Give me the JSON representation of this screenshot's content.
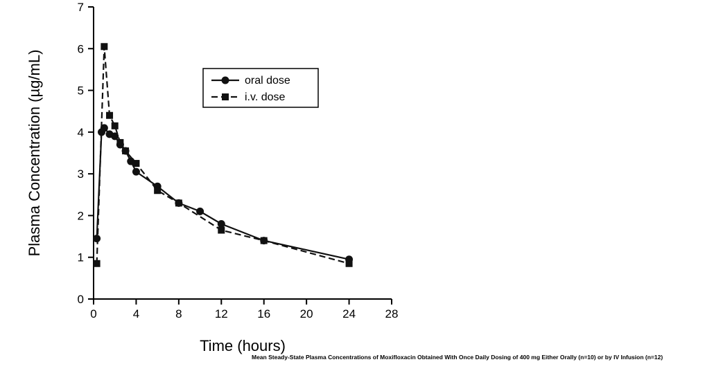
{
  "chart_data": {
    "type": "line",
    "title": "",
    "xlabel": "Time (hours)",
    "ylabel": "Plasma Concentration (µg/mL)",
    "xlim": [
      0,
      28
    ],
    "ylim": [
      0,
      7
    ],
    "xticks": [
      0,
      4,
      8,
      12,
      16,
      20,
      24,
      28
    ],
    "yticks": [
      0,
      1,
      2,
      3,
      4,
      5,
      6,
      7
    ],
    "grid": false,
    "legend_position": "upper-center-inside",
    "series": [
      {
        "name": "oral dose",
        "marker": "circle",
        "line": "solid",
        "x": [
          0.3,
          0.75,
          1,
          1.5,
          2,
          2.5,
          3,
          3.5,
          4,
          6,
          8,
          10,
          12,
          16,
          24
        ],
        "y": [
          1.45,
          4.0,
          4.1,
          3.95,
          3.9,
          3.7,
          3.55,
          3.3,
          3.05,
          2.7,
          2.3,
          2.1,
          1.8,
          1.4,
          0.95
        ]
      },
      {
        "name": "i.v.  dose",
        "marker": "square",
        "line": "dashed",
        "x": [
          0.3,
          1,
          1.5,
          2,
          2.5,
          3,
          4,
          6,
          8,
          12,
          16,
          24
        ],
        "y": [
          0.85,
          6.05,
          4.4,
          4.15,
          3.75,
          3.55,
          3.25,
          2.6,
          2.3,
          1.65,
          1.4,
          0.85
        ]
      }
    ]
  },
  "caption": "Mean Steady-State Plasma Concentrations of Moxifloxacin Obtained With Once Daily Dosing of 400 mg Either Orally (n=10) or by IV Infusion (n=12)",
  "colors": {
    "stroke": "#111111",
    "axis": "#000000",
    "background": "#ffffff"
  }
}
